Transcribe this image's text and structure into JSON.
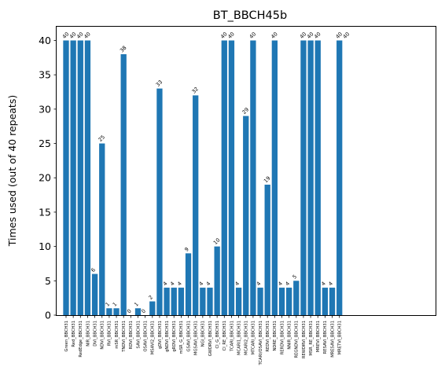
{
  "chart_data": {
    "type": "bar",
    "title": "BT_BBCH45b",
    "xlabel": "",
    "ylabel": "Times used (out of 40 repeats)",
    "ylim": [
      0,
      42
    ],
    "yticks": [
      0,
      5,
      10,
      15,
      20,
      25,
      30,
      35,
      40
    ],
    "grid": false,
    "bar_color": "#1f77b4",
    "categories": [
      "Green_BBCH31",
      "Red_BBCH31",
      "RedEdge_BBCH31",
      "NIR_BBCH31",
      "DVI_BBCH31",
      "NDVI_BBCH31",
      "RVI_BBCH31",
      "mSR_BBCH31",
      "TNDVI_BBCH31",
      "RDVI_BBCH31",
      "SAVI_BBCH31",
      "OSAVI_BBCH31",
      "MSAVI2_BBCH31",
      "gDVI_BBCH31",
      "gNDVI_BBCH31",
      "gRDVI_BBCH31",
      "mSR_G_BBCH31",
      "GSAVI_BBCH31",
      "MGSAVI_BBCH31",
      "NGI_BBCH31",
      "GWDRVI_BBCH31",
      "CI_G_BBCH31",
      "CI_RE_BBCH31",
      "TCARI_BBCH31",
      "MCARI1_BBCH31",
      "MCARI2_BBCH31",
      "MTCARI_BBCH31",
      "TCARI/OSAVI_BBCH31",
      "REDVI_BBCH31",
      "NDRE_BBCH31",
      "RERDVI_BBCH31",
      "NNIR_BBCH31",
      "REGNDVI_BBCH31",
      "REWDRVI_BBCH31",
      "MSR_RE_BBCH31",
      "MREVI_BBCH31",
      "RESAVI_BBCH31",
      "MRESAVI_BBCH31",
      "MRETVI_BBCH31"
    ],
    "values": [
      40,
      40,
      40,
      40,
      6,
      25,
      1,
      1,
      38,
      0,
      1,
      0,
      2,
      33,
      4,
      4,
      4,
      9,
      32,
      4,
      4,
      10,
      40,
      40,
      4,
      29,
      40,
      4,
      19,
      40,
      4,
      4,
      5,
      40,
      40,
      40,
      4,
      4,
      40
    ],
    "labels": [
      "40",
      "40",
      "40",
      "40",
      "6",
      "25",
      "1",
      "1",
      "38",
      "0",
      "1",
      "0",
      "2",
      "33",
      "4",
      "4",
      "4",
      "9",
      "32",
      "4",
      "4",
      "10",
      "40",
      "40",
      "4",
      "29",
      "40",
      "4",
      "19",
      "40",
      "4",
      "4",
      "5",
      "40",
      "40",
      "40",
      "4",
      "4",
      "40"
    ],
    "extra_label": "40"
  }
}
